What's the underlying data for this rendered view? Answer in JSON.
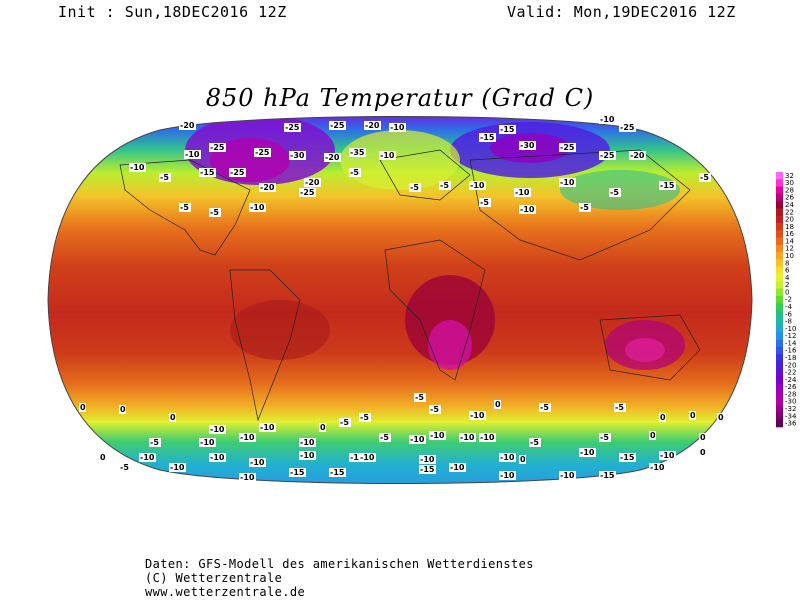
{
  "header": {
    "init": "Init : Sun,18DEC2016 12Z",
    "valid": "Valid: Mon,19DEC2016 12Z"
  },
  "title": "850 hPa Temperatur (Grad C)",
  "colorbar": {
    "ticks": [
      "32",
      "30",
      "28",
      "26",
      "24",
      "22",
      "20",
      "18",
      "16",
      "14",
      "12",
      "10",
      "8",
      "6",
      "4",
      "2",
      "0",
      "-2",
      "-4",
      "-6",
      "-8",
      "-10",
      "-12",
      "-14",
      "-16",
      "-18",
      "-20",
      "-22",
      "-24",
      "-26",
      "-28",
      "-30",
      "-32",
      "-34",
      "-36"
    ],
    "colors": [
      "#ff66ff",
      "#ff33cc",
      "#e6009e",
      "#b3007a",
      "#990033",
      "#aa1a1a",
      "#c02020",
      "#d43a1a",
      "#e0501a",
      "#e86a1a",
      "#f08a1e",
      "#f5a623",
      "#f8c52a",
      "#f5e030",
      "#e8f032",
      "#c8f032",
      "#90e830",
      "#5ed834",
      "#33cc55",
      "#22c080",
      "#20b8a8",
      "#22a8d0",
      "#2590e8",
      "#2a70f0",
      "#3350f0",
      "#3a30e8",
      "#4a20e0",
      "#6010d8",
      "#7a00cc",
      "#9000c0",
      "#a300b0",
      "#b000a0",
      "#98008a",
      "#7a0070",
      "#5a0058"
    ]
  },
  "contour_labels": [
    "-20",
    "-25",
    "-30",
    "-35",
    "-15",
    "-10",
    "-5",
    "0",
    "-1"
  ],
  "credits": {
    "line1": "Daten: GFS-Modell des amerikanischen Wetterdienstes",
    "line2": "(C) Wetterzentrale",
    "line3": "www.wetterzentrale.de"
  }
}
